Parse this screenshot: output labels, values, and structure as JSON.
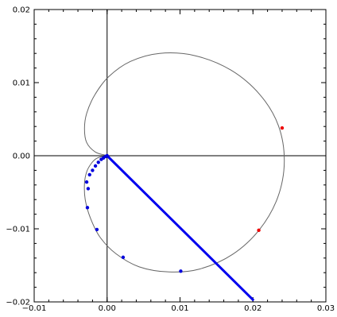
{
  "chart_data": {
    "type": "scatter",
    "title": "",
    "xlabel": "",
    "ylabel": "",
    "xlim": [
      -0.01,
      0.03
    ],
    "ylim": [
      -0.02,
      0.02
    ],
    "grid": false,
    "frame_ticks": true,
    "x_ticks": [
      {
        "value": -0.01,
        "label": "−0.01"
      },
      {
        "value": 0.0,
        "label": "0.00"
      },
      {
        "value": 0.01,
        "label": "0.01"
      },
      {
        "value": 0.02,
        "label": "0.02"
      },
      {
        "value": 0.03,
        "label": "0.03"
      }
    ],
    "y_ticks": [
      {
        "value": 0.02,
        "label": "0.02"
      },
      {
        "value": 0.01,
        "label": "0.01"
      },
      {
        "value": 0.0,
        "label": "0.00"
      },
      {
        "value": -0.01,
        "label": "−0.01"
      },
      {
        "value": -0.02,
        "label": "−0.02"
      }
    ],
    "zero_axes": true,
    "curve": {
      "color": "#666666",
      "points": [
        [
          0.0,
          0.0
        ],
        [
          -0.0016,
          0.0005
        ],
        [
          -0.0028,
          0.0018
        ],
        [
          -0.0031,
          0.0037
        ],
        [
          -0.0028,
          0.0058
        ],
        [
          -0.0017,
          0.0083
        ],
        [
          0.0002,
          0.0108
        ],
        [
          0.0032,
          0.0129
        ],
        [
          0.0072,
          0.014
        ],
        [
          0.012,
          0.0137
        ],
        [
          0.017,
          0.0117
        ],
        [
          0.021,
          0.0083
        ],
        [
          0.0235,
          0.0041
        ],
        [
          0.0243,
          -0.0008
        ],
        [
          0.0234,
          -0.0057
        ],
        [
          0.0209,
          -0.0101
        ],
        [
          0.0172,
          -0.0135
        ],
        [
          0.0127,
          -0.0155
        ],
        [
          0.0085,
          -0.0159
        ],
        [
          0.0044,
          -0.0152
        ],
        [
          0.0012,
          -0.0134
        ],
        [
          -0.001,
          -0.0111
        ],
        [
          -0.0023,
          -0.0085
        ],
        [
          -0.003,
          -0.006
        ],
        [
          -0.0031,
          -0.0038
        ],
        [
          -0.0028,
          -0.0022
        ],
        [
          -0.0022,
          -0.0011
        ],
        [
          -0.0015,
          -0.0004
        ],
        [
          -0.0007,
          -0.0001
        ],
        [
          0.0,
          0.0
        ]
      ]
    },
    "line": {
      "color": "#0000ee",
      "points": [
        [
          0.0,
          0.0
        ],
        [
          0.0201,
          -0.0198
        ]
      ]
    },
    "series": [
      {
        "color": "#0000dd",
        "points": [
          [
            -0.0026,
            -0.0045
          ],
          [
            -0.0028,
            -0.0036
          ],
          [
            -0.0027,
            -0.0071
          ],
          [
            -0.0024,
            -0.0026
          ],
          [
            -0.002,
            -0.002
          ],
          [
            -0.0016,
            -0.0014
          ],
          [
            -0.0012,
            -0.0009
          ],
          [
            -0.0008,
            -0.0005
          ],
          [
            -0.0005,
            -0.0003
          ],
          [
            -0.0002,
            -0.0001
          ],
          [
            0.0,
            0.0
          ],
          [
            -0.0014,
            -0.0101
          ],
          [
            0.0022,
            -0.0139
          ],
          [
            0.0101,
            -0.0158
          ]
        ]
      },
      {
        "color": "#ee0000",
        "points": [
          [
            0.024,
            0.0038
          ],
          [
            0.0208,
            -0.0102
          ]
        ]
      }
    ]
  }
}
